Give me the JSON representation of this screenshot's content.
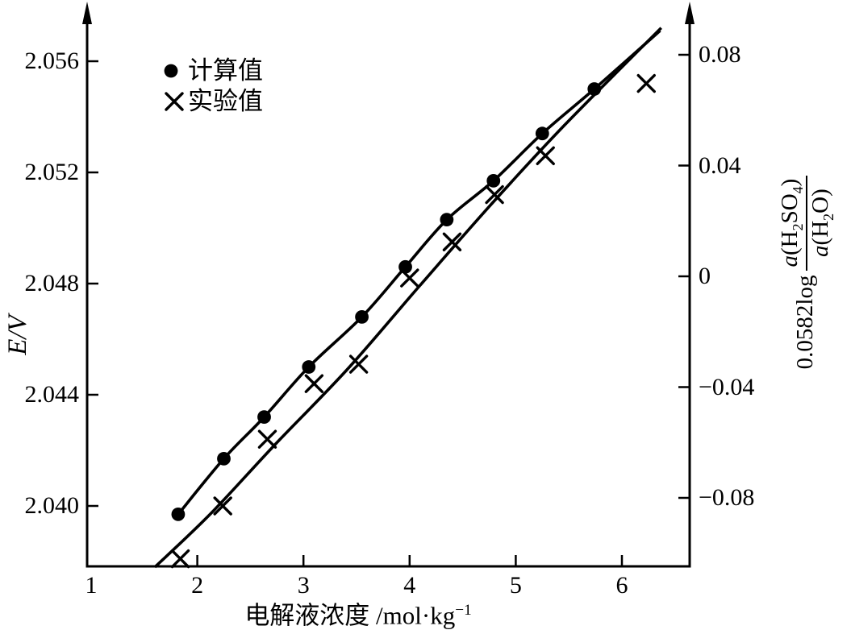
{
  "figure": {
    "background": "#ffffff",
    "ink": "#000000"
  },
  "legend": {
    "items": [
      {
        "marker": "filled-circle",
        "label": "计算值"
      },
      {
        "marker": "x-cross",
        "label": "实验值"
      }
    ]
  },
  "axes": {
    "left": {
      "label": "E/V",
      "tick_labels": [
        "2.056",
        "2.052",
        "2.048",
        "2.044",
        "2.040"
      ],
      "tick_values": [
        2.056,
        2.052,
        2.048,
        2.044,
        2.04
      ]
    },
    "right": {
      "prefix": "0.0582log",
      "numerator_segments": [
        {
          "t": "a",
          "i": true
        },
        {
          "t": "(H"
        },
        {
          "t": "2",
          "sub": true
        },
        {
          "t": "SO"
        },
        {
          "t": "4",
          "sub": true
        },
        {
          "t": ")"
        }
      ],
      "denominator_segments": [
        {
          "t": "a",
          "i": true
        },
        {
          "t": "(H"
        },
        {
          "t": "2",
          "sub": true
        },
        {
          "t": "O)"
        }
      ],
      "tick_labels": [
        "0.08",
        "0.04",
        "0",
        "−0.04",
        "−0.08"
      ],
      "tick_values": [
        0.08,
        0.04,
        0,
        -0.04,
        -0.08
      ]
    },
    "bottom": {
      "label_segments": [
        {
          "t": "电解液浓度 /mol·kg"
        },
        {
          "t": "−1",
          "sup": true
        }
      ],
      "tick_labels": [
        "1",
        "2",
        "3",
        "4",
        "5",
        "6"
      ],
      "tick_values": [
        1,
        2,
        3,
        4,
        5,
        6
      ]
    }
  },
  "chart_data": {
    "type": "scatter",
    "xlabel": "电解液浓度 /mol·kg⁻¹",
    "ylabel_left": "E/V",
    "ylabel_right": "0.0582log a(H2SO4)/a(H2O)",
    "x_range": [
      0.96,
      6.64
    ],
    "y_left_range": [
      2.0378,
      2.0581
    ],
    "y_right_range": [
      -0.104,
      0.099
    ],
    "right_axis_zero_at_E": 2.0483,
    "grid": false,
    "legend_position": "top-left-inside",
    "series": [
      {
        "name": "计算值",
        "marker": "circle",
        "points": [
          [
            1.82,
            2.0397
          ],
          [
            2.25,
            2.0417
          ],
          [
            2.63,
            2.0432
          ],
          [
            3.05,
            2.045
          ],
          [
            3.55,
            2.0468
          ],
          [
            3.96,
            2.0486
          ],
          [
            4.35,
            2.0503
          ],
          [
            4.79,
            2.0517
          ],
          [
            5.25,
            2.0534
          ],
          [
            5.74,
            2.055
          ]
        ],
        "fit_line": [
          [
            1.82,
            2.0397
          ],
          [
            2.25,
            2.0417
          ],
          [
            2.63,
            2.0432
          ],
          [
            3.05,
            2.045
          ],
          [
            3.55,
            2.0468
          ],
          [
            3.96,
            2.0486
          ],
          [
            4.35,
            2.0503
          ],
          [
            4.79,
            2.0517
          ],
          [
            5.25,
            2.0534
          ],
          [
            5.74,
            2.055
          ],
          [
            6.36,
            2.0571
          ]
        ]
      },
      {
        "name": "实验值",
        "marker": "x",
        "points": [
          [
            1.84,
            2.0381
          ],
          [
            2.24,
            2.04
          ],
          [
            2.66,
            2.0424
          ],
          [
            3.1,
            2.0444
          ],
          [
            3.52,
            2.0451
          ],
          [
            4.0,
            2.0482
          ],
          [
            4.4,
            2.0495
          ],
          [
            4.8,
            2.0512
          ],
          [
            5.28,
            2.0526
          ],
          [
            6.23,
            2.0552
          ]
        ],
        "fit_line": [
          [
            1.6,
            2.0378
          ],
          [
            2.12,
            2.0397
          ],
          [
            2.73,
            2.0422
          ],
          [
            3.41,
            2.0449
          ],
          [
            4.09,
            2.0479
          ],
          [
            4.78,
            2.0509
          ],
          [
            5.46,
            2.0537
          ],
          [
            6.37,
            2.0572
          ]
        ]
      }
    ]
  }
}
